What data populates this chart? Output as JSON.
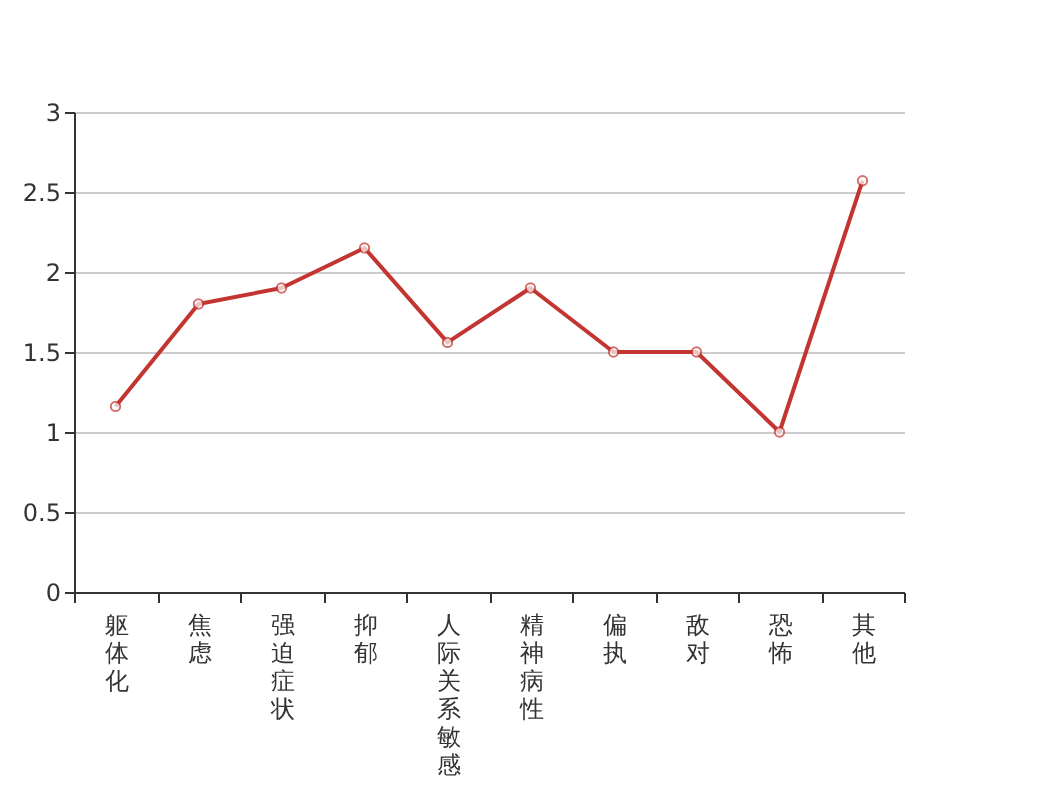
{
  "chart_data": {
    "type": "line",
    "categories": [
      "躯体化",
      "焦虑",
      "强迫症状",
      "抑郁",
      "人际关系敏感",
      "精神病性",
      "偏执",
      "敌对",
      "恐怖",
      "其他"
    ],
    "series": [
      {
        "color": "#c23531",
        "values": [
          1.16,
          1.8,
          1.9,
          2.15,
          1.56,
          1.9,
          1.5,
          1.5,
          1.0,
          2.57
        ]
      }
    ],
    "ylim": [
      0,
      3
    ],
    "yticks": [
      0,
      0.5,
      1,
      1.5,
      2,
      2.5,
      3
    ],
    "grid": "y",
    "legend": false,
    "marker": "circle",
    "line_style": "solid"
  }
}
